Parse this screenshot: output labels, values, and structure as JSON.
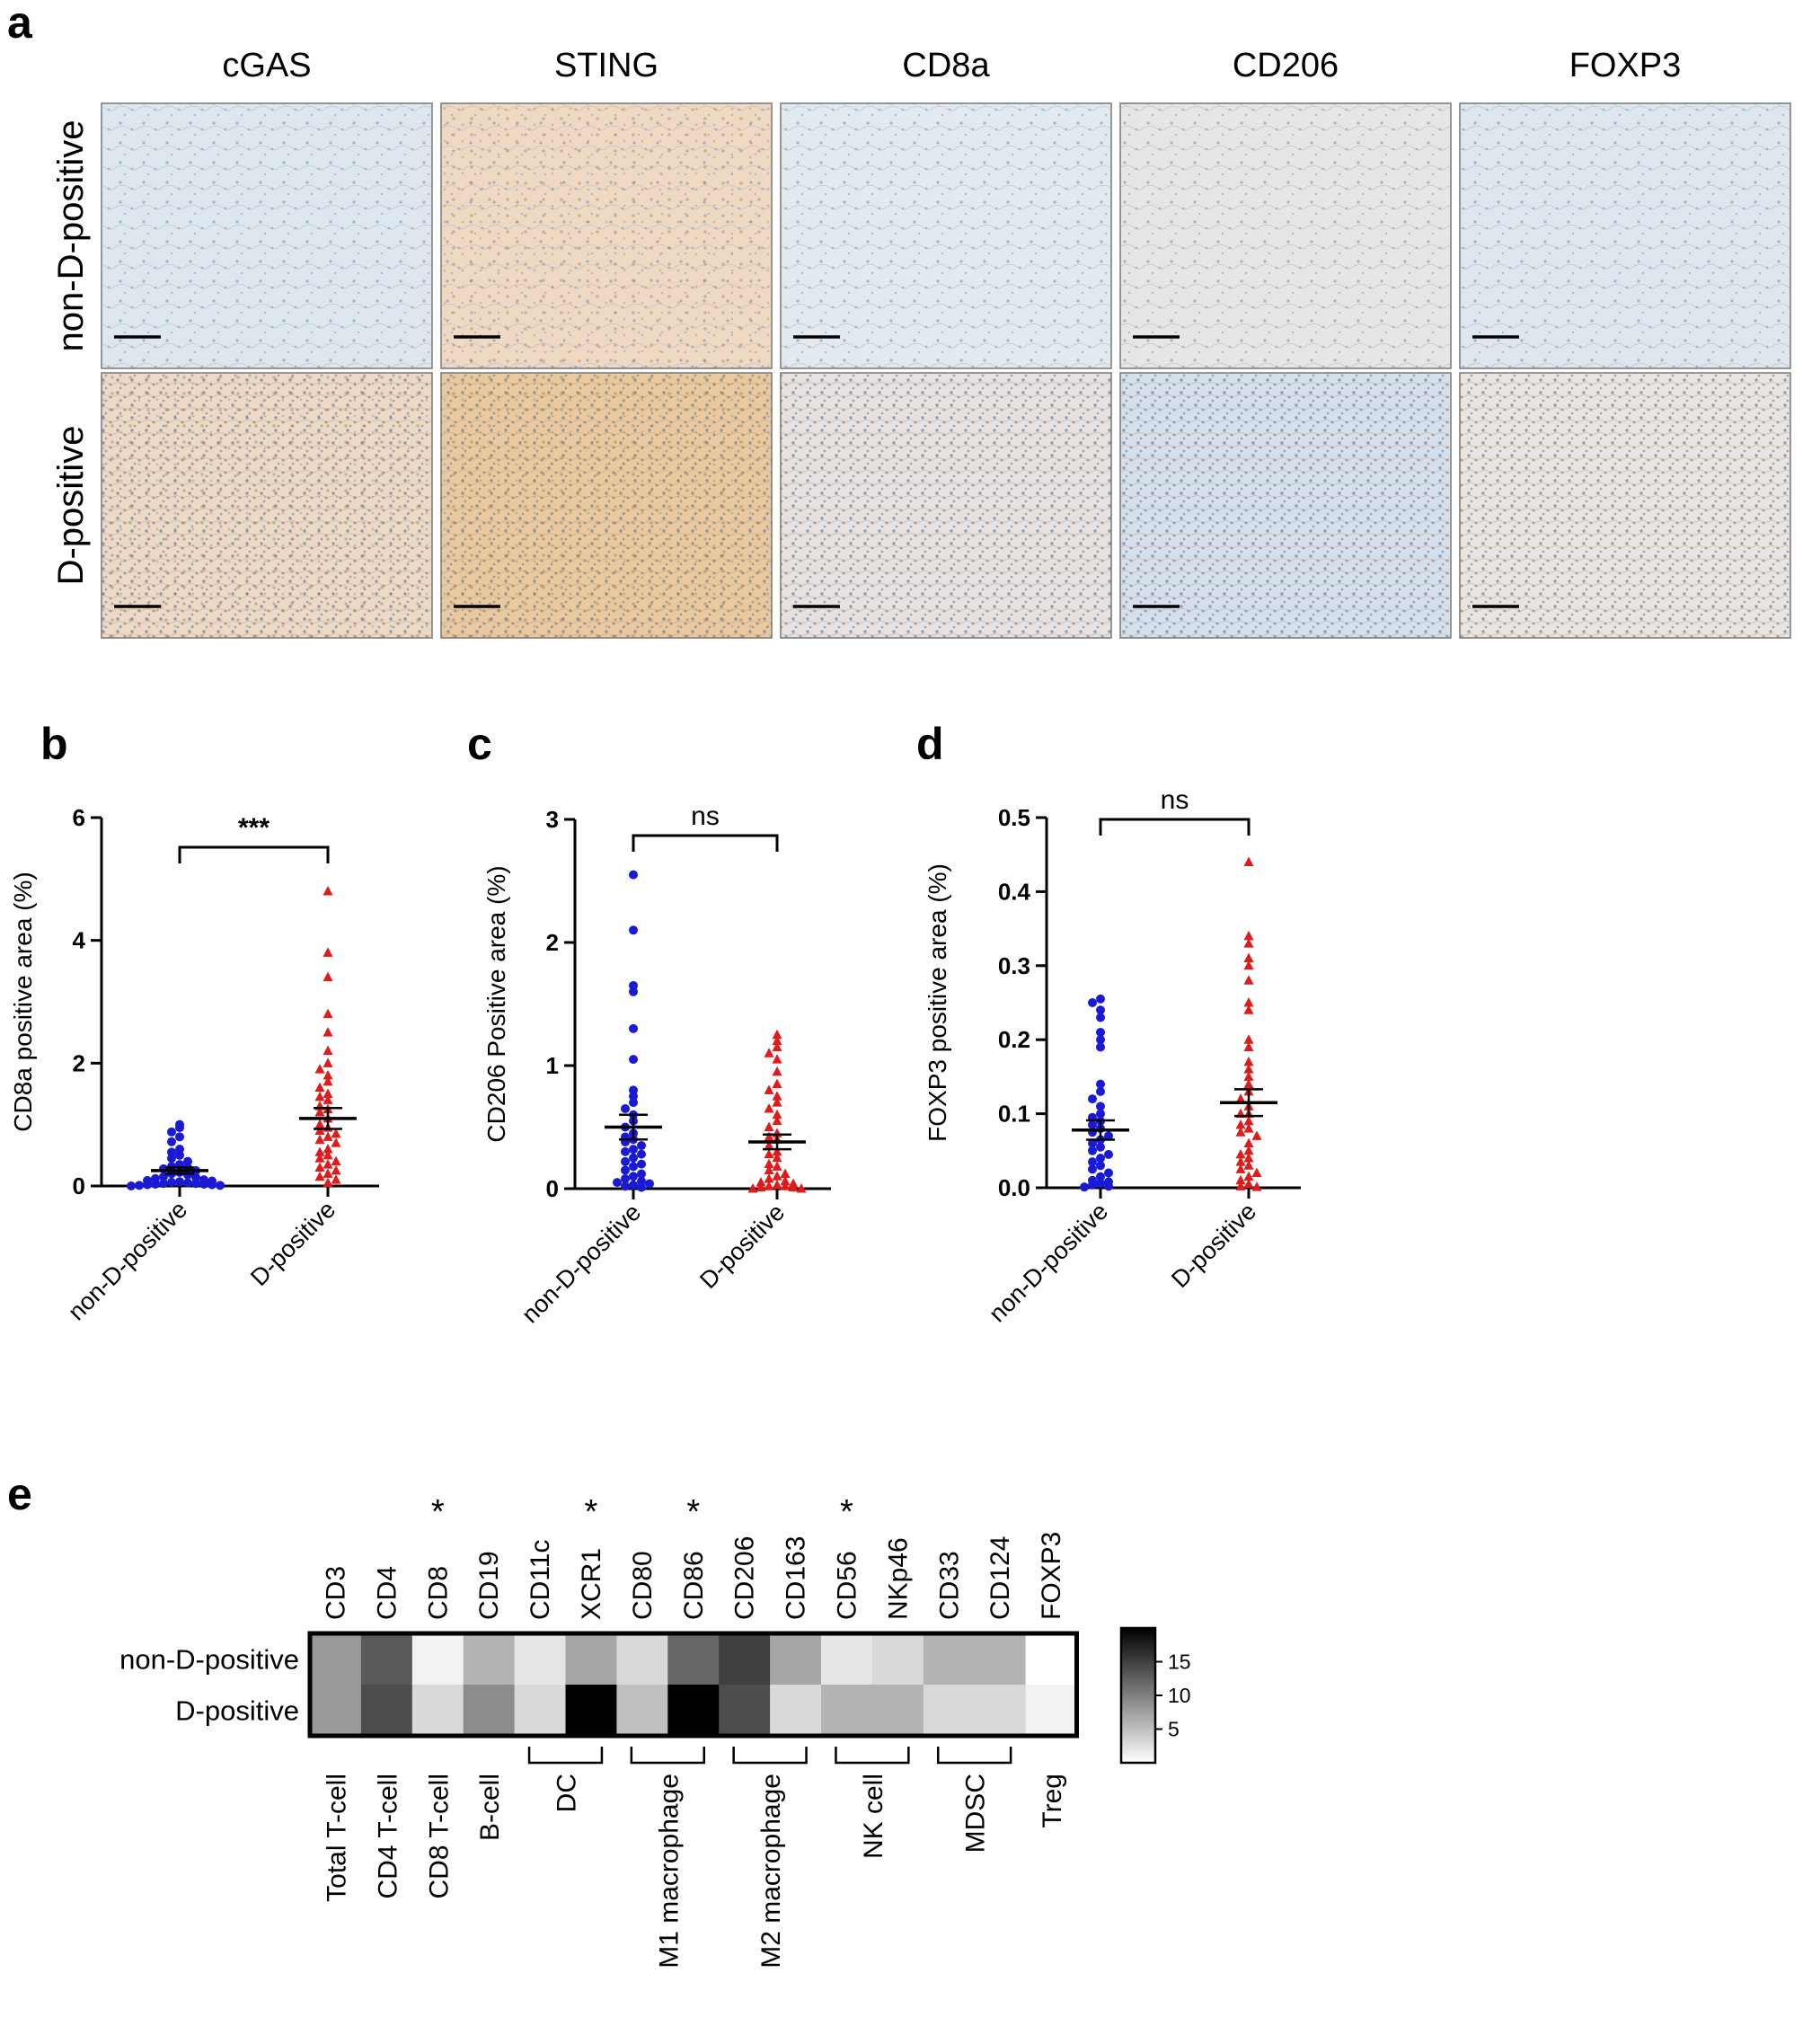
{
  "panel_letters": {
    "a": "a",
    "b": "b",
    "c": "c",
    "d": "d",
    "e": "e"
  },
  "micrographs": {
    "columns": [
      "cGAS",
      "STING",
      "CD8a",
      "CD206",
      "FOXP3"
    ],
    "rows": [
      "non-D-positive",
      "D-positive"
    ],
    "tint_colors": {
      "non-D-positive": [
        "#dfe7ee",
        "#f0d9c3",
        "#e2e9ef",
        "#e7e6e4",
        "#dfe6ed"
      ],
      "D-positive": [
        "#ecd9c8",
        "#e8c9a0",
        "#e5e2e0",
        "#d6e0ec",
        "#e9e4df"
      ]
    }
  },
  "chart_data": [
    {
      "panel": "b",
      "type": "scatter",
      "ylabel": "CD8a positive area (%)",
      "ylim": [
        0,
        6
      ],
      "yticks": [
        "0",
        "2",
        "4",
        "6"
      ],
      "categories": [
        "non-D-positive",
        "D-positive"
      ],
      "significance": "***",
      "series": [
        {
          "category": "non-D-positive",
          "marker": "circle",
          "color": "#1a1ad6",
          "mean": 0.25,
          "sem": 0.05,
          "values": [
            1.0,
            0.95,
            0.88,
            0.8,
            0.72,
            0.6,
            0.55,
            0.5,
            0.45,
            0.4,
            0.35,
            0.32,
            0.3,
            0.28,
            0.25,
            0.22,
            0.2,
            0.18,
            0.15,
            0.14,
            0.12,
            0.1,
            0.09,
            0.08,
            0.07,
            0.06,
            0.05,
            0.04,
            0.04,
            0.03,
            0.03,
            0.02,
            0.02,
            0.01,
            0.01,
            0.0
          ]
        },
        {
          "category": "D-positive",
          "marker": "triangle",
          "color": "#e01b1b",
          "mean": 1.1,
          "sem": 0.17,
          "values": [
            4.8,
            3.8,
            3.4,
            2.8,
            2.5,
            2.2,
            2.0,
            1.9,
            1.8,
            1.7,
            1.6,
            1.5,
            1.45,
            1.4,
            1.3,
            1.25,
            1.2,
            1.1,
            1.0,
            0.95,
            0.9,
            0.85,
            0.8,
            0.75,
            0.7,
            0.6,
            0.55,
            0.5,
            0.45,
            0.4,
            0.35,
            0.3,
            0.25,
            0.2,
            0.15,
            0.1,
            0.05
          ]
        }
      ]
    },
    {
      "panel": "c",
      "type": "scatter",
      "ylabel": "CD206 Positive area (%)",
      "ylim": [
        0,
        3
      ],
      "yticks": [
        "0",
        "1",
        "2",
        "3"
      ],
      "categories": [
        "non-D-positive",
        "D-positive"
      ],
      "significance": "ns",
      "series": [
        {
          "category": "non-D-positive",
          "marker": "circle",
          "color": "#1a1ad6",
          "mean": 0.5,
          "sem": 0.1,
          "values": [
            2.55,
            2.1,
            1.65,
            1.6,
            1.3,
            1.05,
            0.8,
            0.75,
            0.7,
            0.65,
            0.6,
            0.55,
            0.5,
            0.45,
            0.42,
            0.4,
            0.38,
            0.35,
            0.32,
            0.3,
            0.28,
            0.25,
            0.22,
            0.2,
            0.18,
            0.15,
            0.12,
            0.1,
            0.08,
            0.06,
            0.05,
            0.04,
            0.03,
            0.02,
            0.01
          ]
        },
        {
          "category": "D-positive",
          "marker": "triangle",
          "color": "#e01b1b",
          "mean": 0.38,
          "sem": 0.06,
          "values": [
            1.25,
            1.2,
            1.15,
            1.1,
            1.05,
            0.95,
            0.85,
            0.8,
            0.75,
            0.7,
            0.65,
            0.6,
            0.55,
            0.5,
            0.45,
            0.42,
            0.4,
            0.35,
            0.3,
            0.28,
            0.25,
            0.2,
            0.18,
            0.15,
            0.12,
            0.1,
            0.08,
            0.06,
            0.05,
            0.04,
            0.03,
            0.02,
            0.02,
            0.01,
            0.01,
            0.0,
            0.0
          ]
        }
      ]
    },
    {
      "panel": "d",
      "type": "scatter",
      "ylabel": "FOXP3 positive area (%)",
      "ylim": [
        0,
        0.5
      ],
      "yticks": [
        "0.0",
        "0.1",
        "0.2",
        "0.3",
        "0.4",
        "0.5"
      ],
      "categories": [
        "non-D-positive",
        "D-positive"
      ],
      "significance": "ns",
      "series": [
        {
          "category": "non-D-positive",
          "marker": "circle",
          "color": "#1a1ad6",
          "mean": 0.078,
          "sem": 0.013,
          "values": [
            0.255,
            0.25,
            0.24,
            0.23,
            0.21,
            0.2,
            0.19,
            0.14,
            0.13,
            0.12,
            0.11,
            0.1,
            0.095,
            0.09,
            0.085,
            0.08,
            0.075,
            0.07,
            0.065,
            0.06,
            0.055,
            0.05,
            0.045,
            0.04,
            0.035,
            0.03,
            0.025,
            0.02,
            0.015,
            0.01,
            0.008,
            0.006,
            0.004,
            0.002,
            0.001
          ]
        },
        {
          "category": "D-positive",
          "marker": "triangle",
          "color": "#e01b1b",
          "mean": 0.115,
          "sem": 0.018,
          "values": [
            0.44,
            0.34,
            0.33,
            0.31,
            0.3,
            0.28,
            0.25,
            0.24,
            0.2,
            0.19,
            0.17,
            0.16,
            0.15,
            0.14,
            0.13,
            0.12,
            0.11,
            0.1,
            0.1,
            0.09,
            0.085,
            0.08,
            0.075,
            0.07,
            0.06,
            0.05,
            0.045,
            0.04,
            0.035,
            0.03,
            0.025,
            0.02,
            0.015,
            0.01,
            0.005,
            0.002,
            0.001
          ]
        }
      ]
    },
    {
      "panel": "e",
      "type": "heatmap",
      "columns": [
        "CD3",
        "CD4",
        "CD8",
        "CD19",
        "CD11c",
        "XCR1",
        "CD80",
        "CD86",
        "CD206",
        "CD163",
        "CD56",
        "NKp46",
        "CD33",
        "CD124",
        "FOXP3"
      ],
      "significant_columns": [
        "CD8",
        "XCR1",
        "CD86",
        "CD56"
      ],
      "significance_marker": "*",
      "rows": [
        "non-D-positive",
        "D-positive"
      ],
      "values": [
        [
          8,
          13,
          1,
          6,
          2,
          7,
          3,
          12,
          15,
          7,
          2,
          3,
          6,
          6,
          0
        ],
        [
          8,
          14,
          3,
          9,
          3,
          20,
          5,
          20,
          14,
          3,
          6,
          6,
          3,
          3,
          1
        ]
      ],
      "color_scale": {
        "min": 0,
        "max": 20,
        "low": "#ffffff",
        "high": "#000000"
      },
      "colorbar_ticks": [
        5,
        10,
        15
      ],
      "groups": [
        {
          "label": "Total T-cell",
          "columns": [
            "CD3"
          ]
        },
        {
          "label": "CD4 T-cell",
          "columns": [
            "CD4"
          ]
        },
        {
          "label": "CD8 T-cell",
          "columns": [
            "CD8"
          ]
        },
        {
          "label": "B-cell",
          "columns": [
            "CD19"
          ]
        },
        {
          "label": "DC",
          "columns": [
            "CD11c",
            "XCR1"
          ]
        },
        {
          "label": "M1 macrophage",
          "columns": [
            "CD80",
            "CD86"
          ]
        },
        {
          "label": "M2 macrophage",
          "columns": [
            "CD206",
            "CD163"
          ]
        },
        {
          "label": "NK cell",
          "columns": [
            "CD56",
            "NKp46"
          ]
        },
        {
          "label": "MDSC",
          "columns": [
            "CD33",
            "CD124"
          ]
        },
        {
          "label": "Treg",
          "columns": [
            "FOXP3"
          ]
        }
      ]
    }
  ]
}
